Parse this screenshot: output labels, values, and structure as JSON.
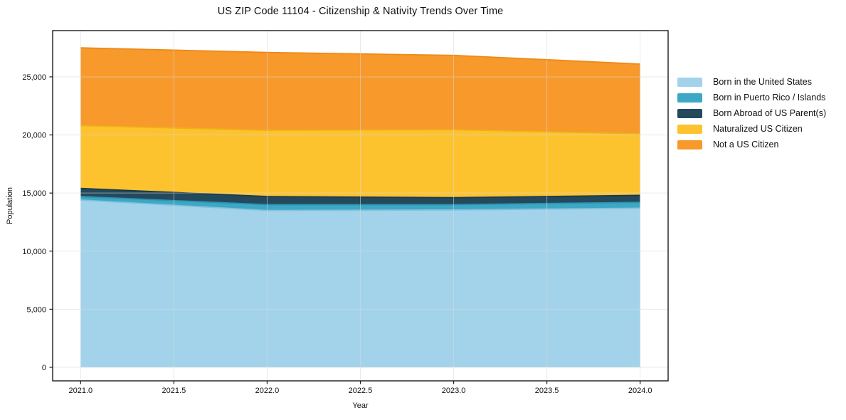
{
  "page": {
    "background": "#ffffff"
  },
  "chart_data": {
    "type": "area",
    "stacked": true,
    "title": "US ZIP Code 11104 - Citizenship & Nativity Trends Over Time",
    "xlabel": "Year",
    "ylabel": "Population",
    "x": [
      2021,
      2022,
      2023,
      2024
    ],
    "series": [
      {
        "name": "Born in the United States",
        "color": "#A2D3EA",
        "edge": "#84BFDB",
        "values": [
          14400,
          13500,
          13550,
          13700
        ]
      },
      {
        "name": "Born in Puerto Rico / Islands",
        "color": "#3CA8C5",
        "edge": "#2D93AF",
        "values": [
          300,
          500,
          450,
          500
        ]
      },
      {
        "name": "Born Abroad of US Parent(s)",
        "color": "#25495C",
        "edge": "#1B3A4A",
        "values": [
          700,
          700,
          600,
          600
        ]
      },
      {
        "name": "Naturalized US Citizen",
        "color": "#FDC32F",
        "edge": "#EFB118",
        "values": [
          5400,
          5700,
          5850,
          5300
        ]
      },
      {
        "name": "Not a US Citizen",
        "color": "#F8992B",
        "edge": "#EC8A16",
        "values": [
          6700,
          6700,
          6400,
          6000
        ]
      }
    ],
    "cumulative_totals": [
      27500,
      27100,
      26850,
      26100
    ],
    "xlim": [
      2020.85,
      2024.15
    ],
    "ylim": [
      -1164,
      28980
    ],
    "x_ticks": [
      2021.0,
      2021.5,
      2022.0,
      2022.5,
      2023.0,
      2023.5,
      2024.0
    ],
    "x_tick_labels": [
      "2021.0",
      "2021.5",
      "2022.0",
      "2022.5",
      "2023.0",
      "2023.5",
      "2024.0"
    ],
    "y_ticks": [
      0,
      5000,
      10000,
      15000,
      20000,
      25000
    ],
    "y_tick_labels": [
      "0",
      "5,000",
      "10,000",
      "15,000",
      "20,000",
      "25,000"
    ],
    "grid": true,
    "grid_color": "#d9d9d9",
    "spine_color": "#1a1a1a",
    "legend_position": "right"
  }
}
